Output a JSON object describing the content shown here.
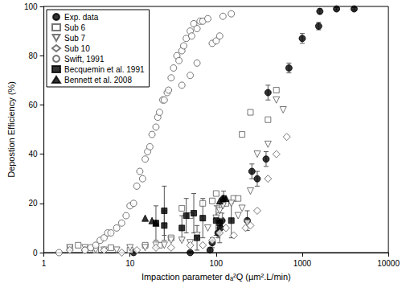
{
  "chart_data": {
    "type": "scatter",
    "x_label": "Impaction parameter dₐ²Q (µm².L/min)",
    "y_label": "Depostion Efficiency (%)",
    "log": "x",
    "grid": false,
    "legend": "upper left",
    "xlim": [
      1,
      10000
    ],
    "xticks": [
      1,
      10,
      100,
      1000,
      10000
    ],
    "ylim": [
      0,
      100
    ],
    "yticks": [
      0,
      20,
      40,
      60,
      80,
      100
    ],
    "series": [
      {
        "name": "Exp. data",
        "color": "#000000",
        "marker": "filled-circle",
        "x": [
          11,
          50,
          85,
          90,
          105,
          112,
          117,
          122,
          230,
          260,
          300,
          380,
          400,
          700,
          1000,
          1550,
          1600,
          2500,
          4000
        ],
        "values": [
          0,
          0,
          1,
          4,
          8,
          10,
          13,
          22,
          13,
          33,
          30,
          38,
          65,
          75,
          87,
          92,
          98,
          99,
          99
        ],
        "errors": [
          0.5,
          0.5,
          1,
          2,
          2,
          2,
          3,
          3,
          4,
          3,
          3,
          3,
          3,
          2,
          2,
          1.5,
          1,
          0.5,
          0.5
        ]
      },
      {
        "name": "Sub 6",
        "color": "#555555",
        "marker": "open-square",
        "x": [
          2,
          2.5,
          4,
          6,
          10,
          15,
          22,
          30,
          40,
          50,
          70,
          90,
          100,
          110,
          130,
          160,
          180,
          200,
          250,
          400,
          500
        ],
        "values": [
          2,
          3,
          1,
          2,
          1,
          3,
          3,
          6,
          18,
          15,
          20,
          21,
          24,
          15,
          20,
          22,
          22,
          48,
          57,
          54,
          66
        ]
      },
      {
        "name": "Sub 7",
        "color": "#555555",
        "marker": "open-triangle-down",
        "x": [
          2,
          3,
          4,
          5,
          7,
          10,
          15,
          20,
          25,
          30,
          40,
          50,
          60,
          80,
          100,
          110,
          120,
          150,
          180,
          200,
          230,
          250,
          300,
          400,
          500,
          600
        ],
        "values": [
          2,
          2,
          1,
          1,
          1,
          2,
          2,
          3,
          3,
          5,
          5,
          4,
          7,
          10,
          14,
          17,
          19,
          20,
          15,
          18,
          12,
          25,
          40,
          44,
          62,
          58
        ]
      },
      {
        "name": "Sub 10",
        "color": "#555555",
        "marker": "open-diamond",
        "x": [
          2,
          3,
          5,
          8,
          12,
          20,
          30,
          50,
          70,
          90,
          110,
          130,
          160,
          220,
          250,
          300,
          400,
          500,
          660
        ],
        "values": [
          1,
          1,
          1,
          0,
          1,
          2,
          2,
          3,
          3,
          5,
          8,
          10,
          7,
          10,
          11,
          17,
          30,
          40,
          47
        ]
      },
      {
        "name": "Swift, 1991",
        "color": "#555555",
        "marker": "open-circle",
        "x": [
          1.5,
          3,
          3.5,
          4,
          4.5,
          5,
          5.5,
          6,
          7,
          8,
          9,
          10,
          11,
          12,
          13,
          14,
          15,
          16,
          17,
          18,
          20,
          21,
          22,
          24,
          25,
          27,
          28,
          30,
          32,
          35,
          37,
          40,
          42,
          45,
          50,
          52,
          55,
          60,
          65,
          70,
          80,
          90,
          100,
          110,
          120,
          150,
          40,
          50,
          60
        ],
        "values": [
          0,
          1,
          2,
          3,
          5,
          6,
          8,
          8,
          10,
          12,
          15,
          19,
          20,
          27,
          33,
          30,
          38,
          41,
          43,
          48,
          51,
          55,
          57,
          62,
          62,
          65,
          66,
          71,
          75,
          80,
          78,
          82,
          84,
          87,
          90,
          88,
          93,
          91,
          94,
          94,
          95,
          85,
          86,
          88,
          96,
          97,
          68,
          72,
          77
        ]
      },
      {
        "name": "Becquemin et al. 1991",
        "color": "#000000",
        "marker": "filled-square",
        "x": [
          20,
          25,
          25,
          40,
          45,
          55,
          60,
          70,
          100,
          110,
          150
        ],
        "values": [
          12,
          17,
          11,
          10,
          15,
          16,
          6,
          14,
          13,
          12,
          13
        ],
        "errors": [
          7,
          10,
          6,
          5,
          7,
          8,
          5,
          8,
          6,
          8,
          7
        ]
      },
      {
        "name": "Bennett et al. 2008",
        "color": "#000000",
        "marker": "filled-triangle",
        "x": [
          15,
          18,
          20,
          110,
          120,
          130
        ],
        "values": [
          14,
          13,
          12,
          21,
          22,
          22
        ]
      }
    ]
  }
}
